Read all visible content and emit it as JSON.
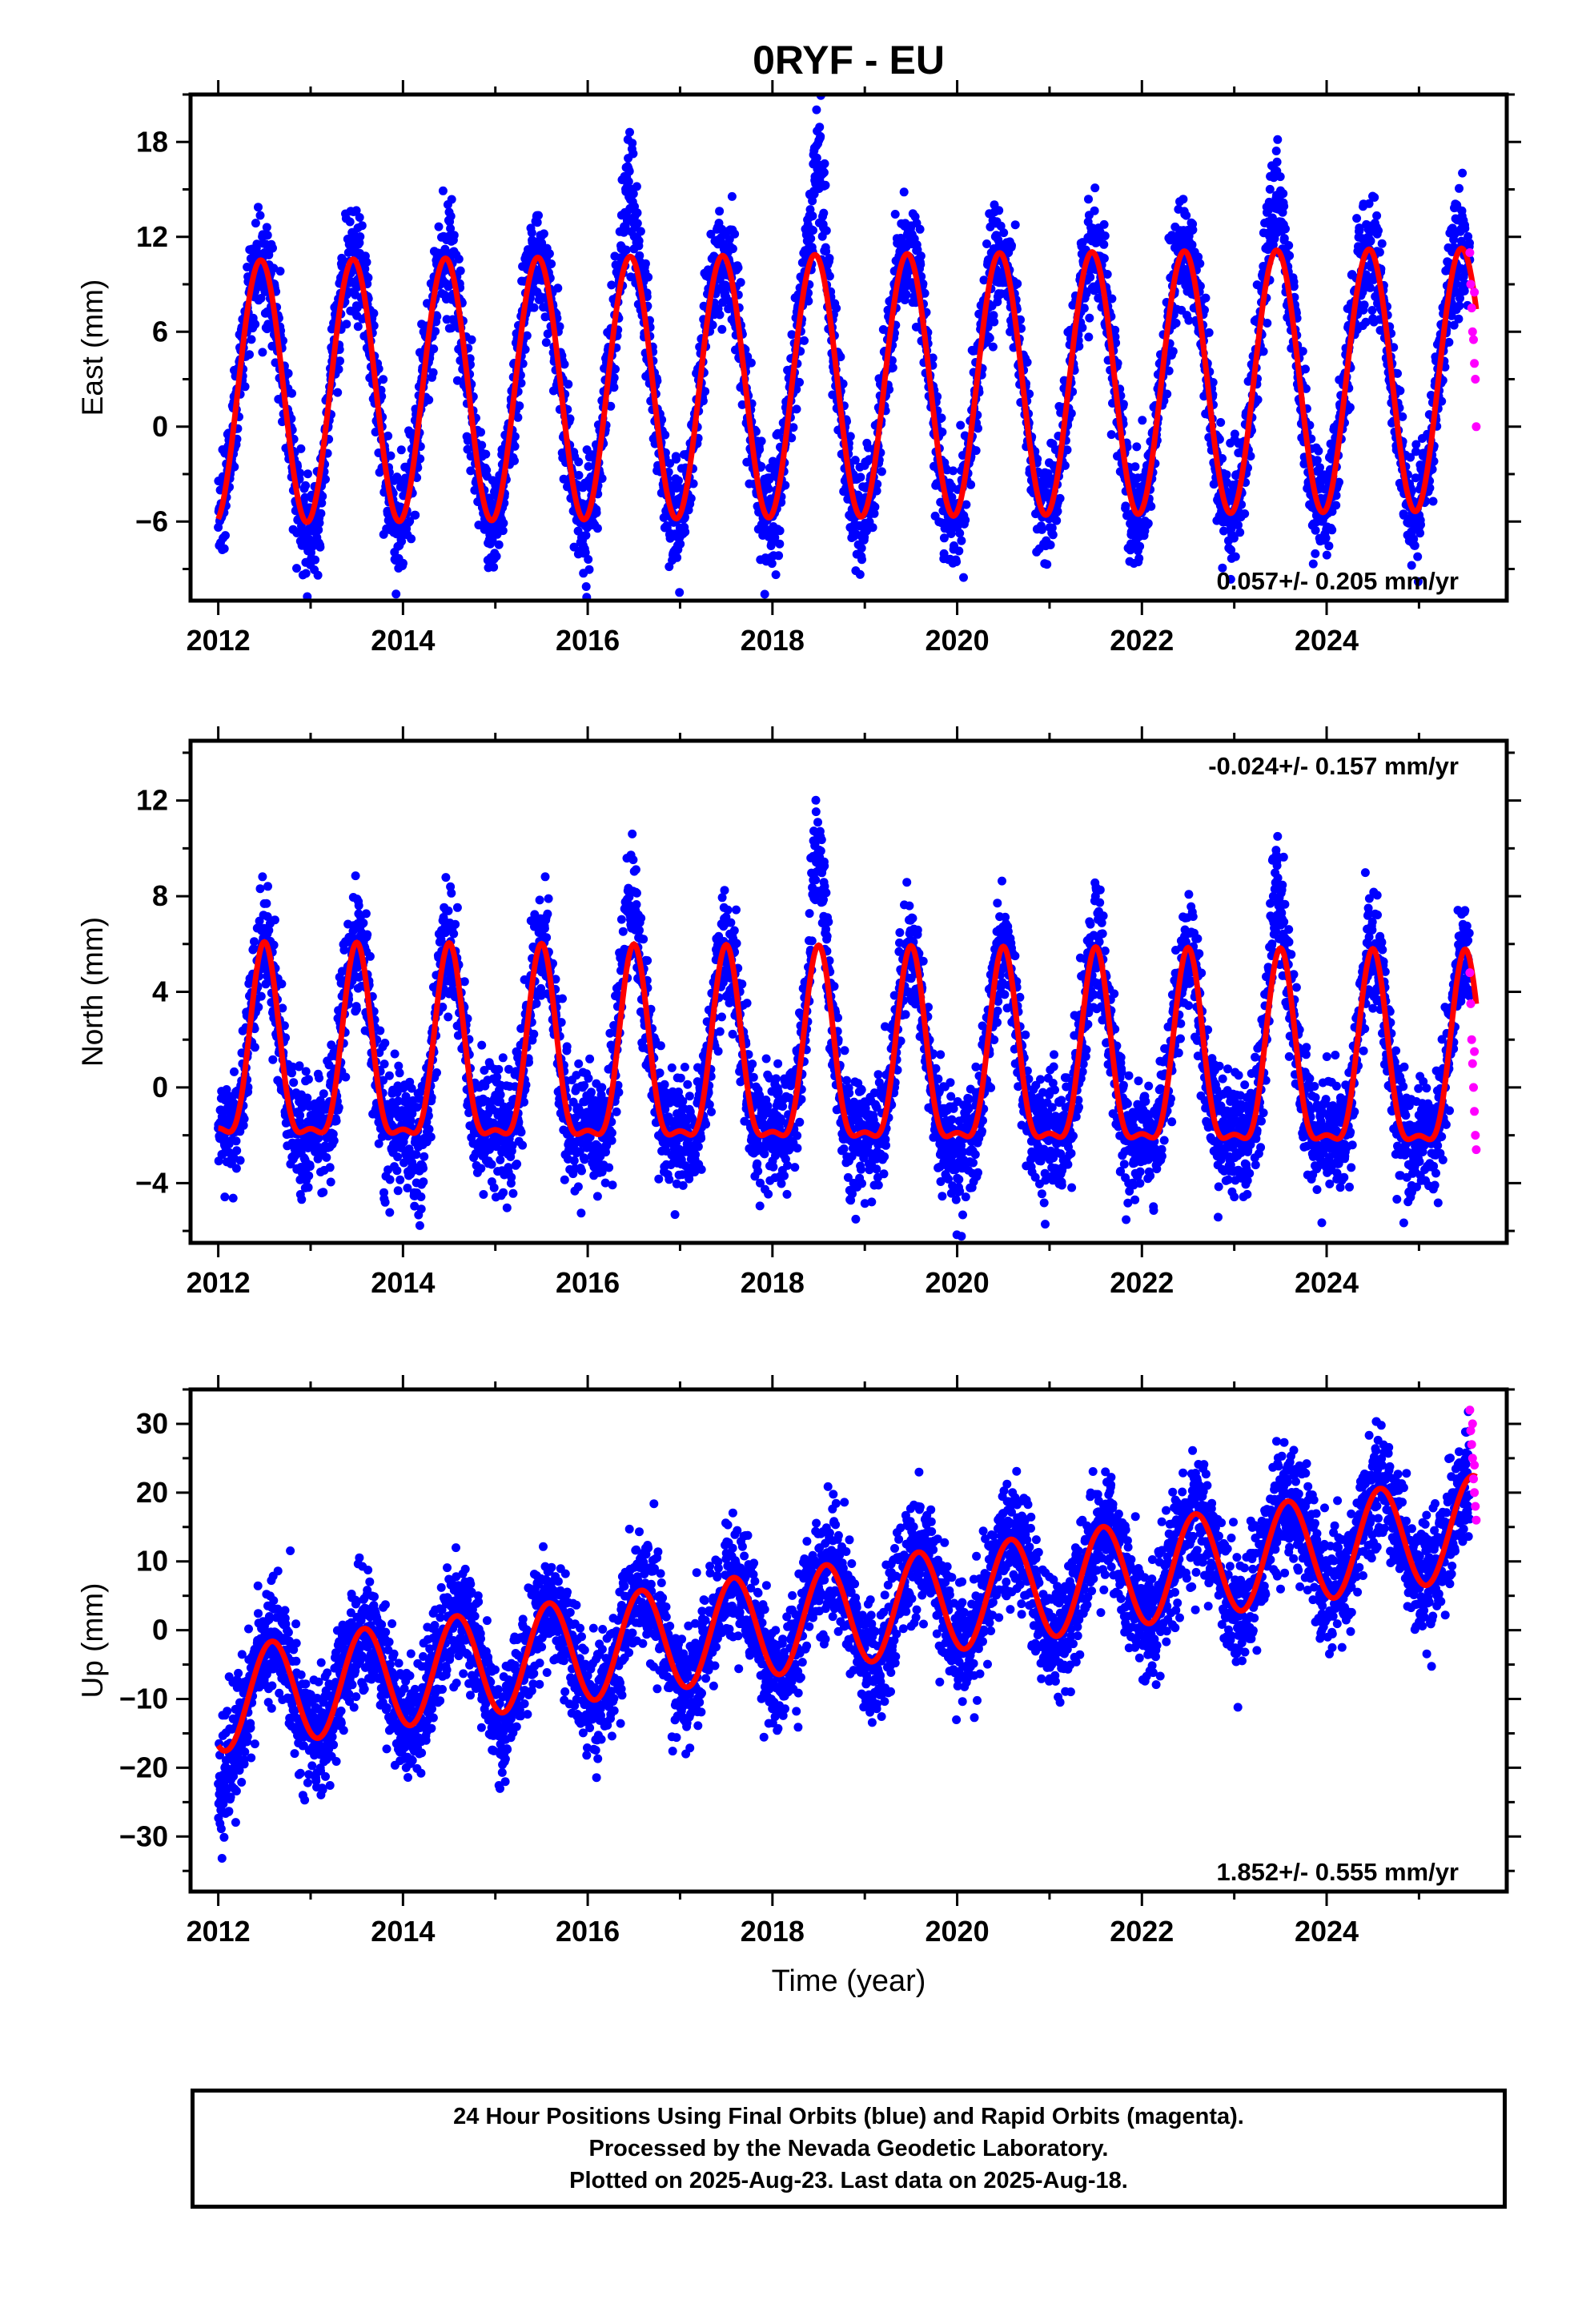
{
  "title": "0RYF - EU",
  "colors": {
    "final": "#0000ff",
    "rapid": "#ff00ff",
    "fit": "#ff0000",
    "axes": "#000000"
  },
  "chart_data": [
    {
      "type": "scatter",
      "name": "east",
      "ylabel": "East (mm)",
      "xlabel": "",
      "xlim": [
        2011.7,
        2025.95
      ],
      "ylim": [
        -11,
        21
      ],
      "yticks": [
        -6,
        0,
        6,
        12,
        18
      ],
      "xticks": [
        2012,
        2014,
        2016,
        2018,
        2020,
        2022,
        2024
      ],
      "rate_text": "0.057+/- 0.205 mm/yr",
      "rate_position": "bottom-right",
      "fit": {
        "offset": 2.2,
        "trend": 0.057,
        "amp1": 8.3,
        "phase1": 2012.46,
        "amp2": 0.0,
        "phase2": 2012.0
      },
      "noise": 1.7,
      "anomalies": [
        {
          "year": 2016.45,
          "extra": 6
        },
        {
          "year": 2018.5,
          "extra": 8
        },
        {
          "year": 2023.45,
          "extra": 5
        },
        {
          "year": 2013.05,
          "extra": -2.5
        }
      ],
      "rapid_points": [
        [
          2025.55,
          11.0
        ],
        [
          2025.56,
          9.0
        ],
        [
          2025.57,
          7.5
        ],
        [
          2025.58,
          6.0
        ],
        [
          2025.59,
          5.5
        ],
        [
          2025.6,
          4.0
        ],
        [
          2025.61,
          3.0
        ],
        [
          2025.62,
          0.0
        ],
        [
          2025.6,
          8.5
        ]
      ]
    },
    {
      "type": "scatter",
      "name": "north",
      "ylabel": "North (mm)",
      "xlabel": "",
      "xlim": [
        2011.7,
        2025.95
      ],
      "ylim": [
        -6.5,
        14.5
      ],
      "yticks": [
        -4,
        0,
        4,
        8,
        12
      ],
      "xticks": [
        2012,
        2014,
        2016,
        2018,
        2020,
        2022,
        2024
      ],
      "rate_text": "-0.024+/- 0.157 mm/yr",
      "rate_position": "top-right",
      "fit": {
        "offset": 0.9,
        "trend": -0.024,
        "amp1": 3.9,
        "phase1": 2012.5,
        "amp2": 1.3,
        "phase2": 2012.5
      },
      "noise": 1.2,
      "anomalies": [
        {
          "year": 2018.5,
          "extra": 5.5
        },
        {
          "year": 2016.45,
          "extra": 2.5
        },
        {
          "year": 2023.45,
          "extra": 3
        },
        {
          "year": 2014.2,
          "extra": -1.8
        },
        {
          "year": 2020.0,
          "extra": -1.8
        }
      ],
      "rapid_points": [
        [
          2025.55,
          4.8
        ],
        [
          2025.56,
          3.5
        ],
        [
          2025.57,
          2.0
        ],
        [
          2025.58,
          1.0
        ],
        [
          2025.59,
          0.0
        ],
        [
          2025.6,
          -1.0
        ],
        [
          2025.61,
          -2.0
        ],
        [
          2025.62,
          -2.6
        ],
        [
          2025.6,
          1.5
        ]
      ]
    },
    {
      "type": "scatter",
      "name": "up",
      "ylabel": "Up (mm)",
      "xlabel": "Time (year)",
      "xlim": [
        2011.7,
        2025.95
      ],
      "ylim": [
        -38,
        35
      ],
      "yticks": [
        -30,
        -20,
        -10,
        0,
        10,
        20,
        30
      ],
      "xticks": [
        2012,
        2014,
        2016,
        2018,
        2020,
        2022,
        2024
      ],
      "rate_text": "1.852+/- 0.555 mm/yr",
      "rate_position": "bottom-right",
      "fit": {
        "offset": -10.2,
        "trend": 1.852,
        "amp1": 7.5,
        "phase1": 2012.58,
        "amp2": 0.0,
        "phase2": 2012.0
      },
      "noise": 4.2,
      "anomalies": [
        {
          "year": 2012.05,
          "extra": -8
        },
        {
          "year": 2015.05,
          "extra": -5
        }
      ],
      "rapid_points": [
        [
          2025.55,
          32.0
        ],
        [
          2025.56,
          29.0
        ],
        [
          2025.57,
          27.0
        ],
        [
          2025.58,
          25.0
        ],
        [
          2025.59,
          22.0
        ],
        [
          2025.6,
          20.0
        ],
        [
          2025.61,
          18.0
        ],
        [
          2025.62,
          16.0
        ],
        [
          2025.58,
          30.0
        ],
        [
          2025.6,
          24.0
        ]
      ]
    }
  ],
  "footer": {
    "line1": "24 Hour Positions Using Final Orbits (blue) and Rapid Orbits (magenta).",
    "line2": "Processed by the Nevada Geodetic Laboratory.",
    "line3": "Plotted on 2025-Aug-23. Last data on 2025-Aug-18."
  }
}
